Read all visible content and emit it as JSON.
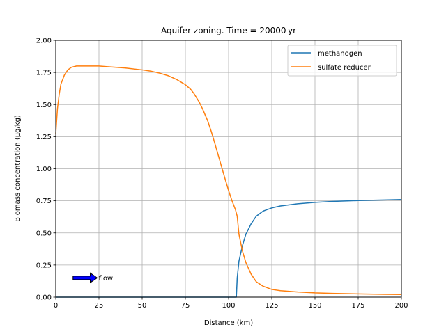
{
  "chart_data": {
    "type": "line",
    "title": "Aquifer zoning.  Time = 20000 yr",
    "xlabel": "Distance (km)",
    "ylabel": "Biomass concentration (μg/kg)",
    "xlim": [
      0,
      200
    ],
    "ylim": [
      0,
      2.0
    ],
    "xticks": [
      0,
      25,
      50,
      75,
      100,
      125,
      150,
      175,
      200
    ],
    "xtick_labels": [
      "0",
      "25",
      "50",
      "75",
      "100",
      "125",
      "150",
      "175",
      "200"
    ],
    "yticks": [
      0,
      0.25,
      0.5,
      0.75,
      1.0,
      1.25,
      1.5,
      1.75,
      2.0
    ],
    "ytick_labels": [
      "0.00",
      "0.25",
      "0.50",
      "0.75",
      "1.00",
      "1.25",
      "1.50",
      "1.75",
      "2.00"
    ],
    "grid": true,
    "legend_position": "top-right",
    "series": [
      {
        "name": "methanogen",
        "color": "#1f77b4",
        "x": [
          0,
          50,
          100,
          104.5,
          105,
          106,
          108,
          110,
          113,
          116,
          120,
          125,
          130,
          140,
          150,
          160,
          175,
          190,
          200
        ],
        "y": [
          0,
          0,
          0,
          0,
          0.15,
          0.28,
          0.4,
          0.49,
          0.57,
          0.63,
          0.67,
          0.695,
          0.71,
          0.727,
          0.738,
          0.745,
          0.752,
          0.757,
          0.76
        ]
      },
      {
        "name": "sulfate reducer",
        "color": "#ff7f0e",
        "x": [
          0,
          1,
          2,
          3,
          5,
          7,
          9,
          12,
          15,
          20,
          25,
          30,
          40,
          50,
          55,
          60,
          65,
          70,
          75,
          78,
          80,
          83,
          85,
          88,
          90,
          92,
          95,
          98,
          100,
          102,
          104,
          105,
          106,
          108,
          110,
          113,
          116,
          120,
          125,
          130,
          140,
          150,
          160,
          175,
          190,
          200
        ],
        "y": [
          1.27,
          1.47,
          1.58,
          1.66,
          1.73,
          1.77,
          1.79,
          1.8,
          1.8,
          1.8,
          1.8,
          1.795,
          1.785,
          1.77,
          1.76,
          1.745,
          1.725,
          1.695,
          1.655,
          1.62,
          1.585,
          1.52,
          1.465,
          1.37,
          1.29,
          1.2,
          1.06,
          0.92,
          0.83,
          0.75,
          0.68,
          0.63,
          0.49,
          0.36,
          0.27,
          0.18,
          0.12,
          0.085,
          0.06,
          0.05,
          0.04,
          0.033,
          0.029,
          0.025,
          0.022,
          0.02
        ]
      }
    ],
    "annotation": {
      "text": "flow",
      "arrow_color": "#0000ff",
      "arrow_start": [
        10,
        0.15
      ],
      "arrow_end": [
        24,
        0.15
      ]
    }
  }
}
